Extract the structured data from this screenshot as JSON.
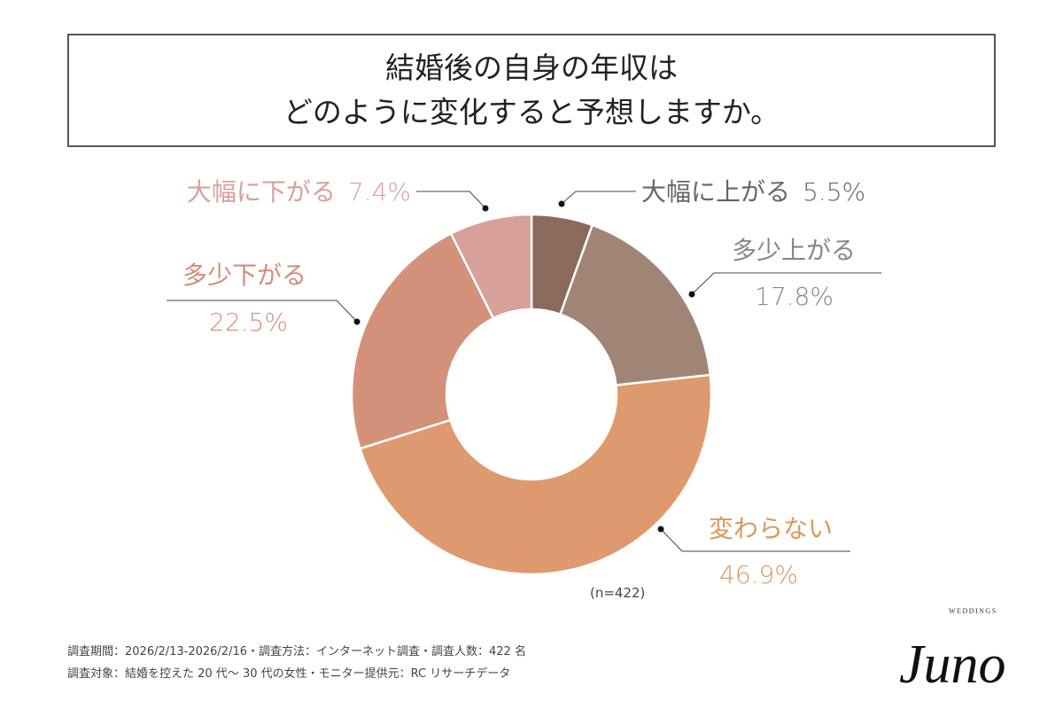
{
  "title": {
    "line1": "結婚後の自身の年収は",
    "line2": "どのように変化すると予想しますか。"
  },
  "chart_data": {
    "type": "pie",
    "donut": true,
    "start": "top, clockwise",
    "categories": [
      "大幅に上がる",
      "多少上がる",
      "変わらない",
      "多少下がる",
      "大幅に下がる"
    ],
    "values": [
      5.5,
      17.8,
      46.9,
      22.5,
      7.4
    ],
    "value_labels": [
      "5.5%",
      "17.8%",
      "46.9%",
      "22.5%",
      "7.4%"
    ],
    "colors": [
      "#8a6a5c",
      "#a08576",
      "#de9a6e",
      "#d4917a",
      "#d6a09b"
    ],
    "label_colors": [
      "#6a6462",
      "#8c8682",
      "#d9995f",
      "#d48d78",
      "#d6a09e"
    ],
    "note": "(n=422)"
  },
  "footer": {
    "line1": "調査期間：2026/2/13-2026/2/16・調査方法：インターネット調査・調査人数：422 名",
    "line2": "調査対象：結婚を控えた 20 代～ 30 代の女性・モニター提供元：RC リサーチデータ"
  },
  "logo": {
    "text": "Juno",
    "sub": "WEDDINGS"
  }
}
